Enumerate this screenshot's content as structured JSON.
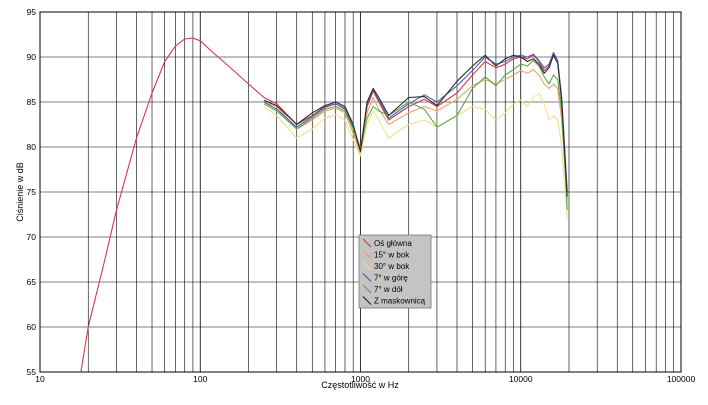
{
  "chart_data": {
    "type": "line",
    "title": "",
    "xlabel": "Częstotliwość w Hz",
    "ylabel": "Ciśnienie w dB",
    "x_scale": "log",
    "xlim": [
      10,
      100000
    ],
    "ylim": [
      55,
      95
    ],
    "x_ticks": [
      10,
      100,
      1000,
      10000,
      100000
    ],
    "x_tick_labels": [
      "10",
      "100",
      "1000",
      "10000",
      "100000"
    ],
    "y_ticks": [
      55,
      60,
      65,
      70,
      75,
      80,
      85,
      90,
      95
    ],
    "y_tick_labels": [
      "55",
      "60",
      "65",
      "70",
      "75",
      "80",
      "85",
      "90",
      "95"
    ],
    "grid": true,
    "legend_position": "center-bottom",
    "series": [
      {
        "name": "Oś główna",
        "color": "#d23a4a",
        "x": [
          18,
          20,
          25,
          30,
          40,
          50,
          60,
          70,
          80,
          90,
          100,
          120,
          150,
          200,
          250,
          300,
          400,
          500,
          600,
          700,
          800,
          900,
          1000,
          1100,
          1200,
          1300,
          1500,
          2000,
          2500,
          3000,
          4000,
          5000,
          6000,
          7000,
          8000,
          9000,
          10000,
          11000,
          12000,
          13000,
          14000,
          15000,
          16000,
          17000,
          18000,
          19000,
          19500
        ],
        "y": [
          55,
          60,
          67,
          73,
          81,
          86,
          89.5,
          91.2,
          92,
          92.1,
          91.8,
          90.5,
          89,
          87,
          85.5,
          84.8,
          82.5,
          83.5,
          84.5,
          84.8,
          84.2,
          82,
          79.5,
          84.5,
          86.2,
          85,
          83,
          84.5,
          85.3,
          84.5,
          86,
          88,
          89.5,
          88.8,
          89.2,
          89.8,
          90,
          89.8,
          90.2,
          89.5,
          88.5,
          89,
          90.3,
          89.5,
          85,
          78,
          75
        ]
      },
      {
        "name": "15° w bok",
        "color": "#e9a36a",
        "x": [
          250,
          300,
          400,
          500,
          600,
          700,
          800,
          900,
          1000,
          1100,
          1200,
          1300,
          1500,
          2000,
          2500,
          3000,
          4000,
          5000,
          6000,
          7000,
          8000,
          9000,
          10000,
          11000,
          12000,
          13000,
          14000,
          15000,
          16000,
          17000,
          18000,
          19000,
          19500
        ],
        "y": [
          85,
          84.5,
          82,
          83,
          84,
          84.3,
          83.8,
          81.5,
          79.2,
          83.8,
          85.5,
          84.2,
          82.5,
          83.8,
          84.5,
          84,
          85.3,
          86.8,
          87.5,
          87,
          87.5,
          88,
          88.5,
          88.2,
          88.6,
          88,
          87,
          86.5,
          87,
          86.5,
          83,
          77,
          74
        ]
      },
      {
        "name": "30° w bok",
        "color": "#f0e08a",
        "x": [
          250,
          300,
          400,
          500,
          600,
          700,
          800,
          900,
          1000,
          1100,
          1200,
          1300,
          1500,
          2000,
          2500,
          3000,
          4000,
          5000,
          6000,
          7000,
          8000,
          9000,
          10000,
          11000,
          12000,
          13000,
          14000,
          15000,
          16000,
          17000,
          18000,
          19000,
          19500
        ],
        "y": [
          84.5,
          83.5,
          81,
          82,
          83.2,
          83.6,
          83,
          80.8,
          79,
          82.5,
          84,
          83,
          81,
          82.5,
          83,
          82.2,
          83.5,
          84.5,
          84.2,
          83,
          83.8,
          84.8,
          85.2,
          84.5,
          85.5,
          86,
          84.8,
          83,
          83.5,
          83,
          80,
          75,
          72
        ]
      },
      {
        "name": "7° w górę",
        "color": "#4a5fb8",
        "x": [
          250,
          300,
          400,
          500,
          600,
          700,
          800,
          900,
          1000,
          1100,
          1200,
          1300,
          1500,
          2000,
          2500,
          3000,
          4000,
          5000,
          6000,
          7000,
          8000,
          9000,
          10000,
          11000,
          12000,
          13000,
          14000,
          15000,
          16000,
          17000,
          18000,
          19000,
          19500
        ],
        "y": [
          85,
          84.2,
          82.2,
          83.4,
          84.4,
          84.8,
          84.3,
          82.2,
          79.8,
          84.8,
          86.4,
          85.2,
          83.2,
          84.8,
          85.8,
          85,
          86.8,
          88.5,
          90,
          89.2,
          89.5,
          90,
          90.2,
          90,
          90.3,
          89.6,
          88.8,
          89.2,
          90.5,
          89.6,
          85.5,
          78.5,
          75
        ]
      },
      {
        "name": "7° w dół",
        "color": "#5aa84a",
        "x": [
          250,
          300,
          400,
          500,
          600,
          700,
          800,
          900,
          1000,
          1100,
          1200,
          1300,
          1500,
          2000,
          2500,
          3000,
          4000,
          5000,
          6000,
          7000,
          8000,
          9000,
          10000,
          11000,
          12000,
          13000,
          14000,
          15000,
          16000,
          17000,
          18000,
          19000,
          19500
        ],
        "y": [
          84.8,
          84,
          82,
          83.2,
          84.2,
          84.5,
          84,
          82,
          79.8,
          83.2,
          84.5,
          84,
          83.5,
          85,
          84.2,
          82.2,
          83.5,
          86.5,
          87.8,
          86.8,
          88,
          88.6,
          89.2,
          89,
          89.6,
          89,
          87.8,
          87,
          88,
          87.5,
          84,
          77,
          73
        ]
      },
      {
        "name": "Z maskownicą",
        "color": "#2a2a2a",
        "x": [
          250,
          300,
          400,
          500,
          600,
          700,
          800,
          900,
          1000,
          1100,
          1200,
          1300,
          1500,
          2000,
          2500,
          3000,
          4000,
          5000,
          6000,
          7000,
          8000,
          9000,
          10000,
          11000,
          12000,
          13000,
          14000,
          15000,
          16000,
          17000,
          18000,
          19000,
          19500
        ],
        "y": [
          85.2,
          84.6,
          82.5,
          83.8,
          84.6,
          85,
          84.5,
          82.5,
          79.5,
          85,
          86.5,
          85.5,
          83.5,
          85.5,
          85.6,
          84.6,
          87.3,
          89,
          90.2,
          89,
          89.8,
          90.2,
          90,
          89.5,
          89.8,
          89.2,
          88.2,
          88.8,
          90.2,
          89.3,
          85.2,
          78,
          74.5
        ]
      }
    ]
  }
}
